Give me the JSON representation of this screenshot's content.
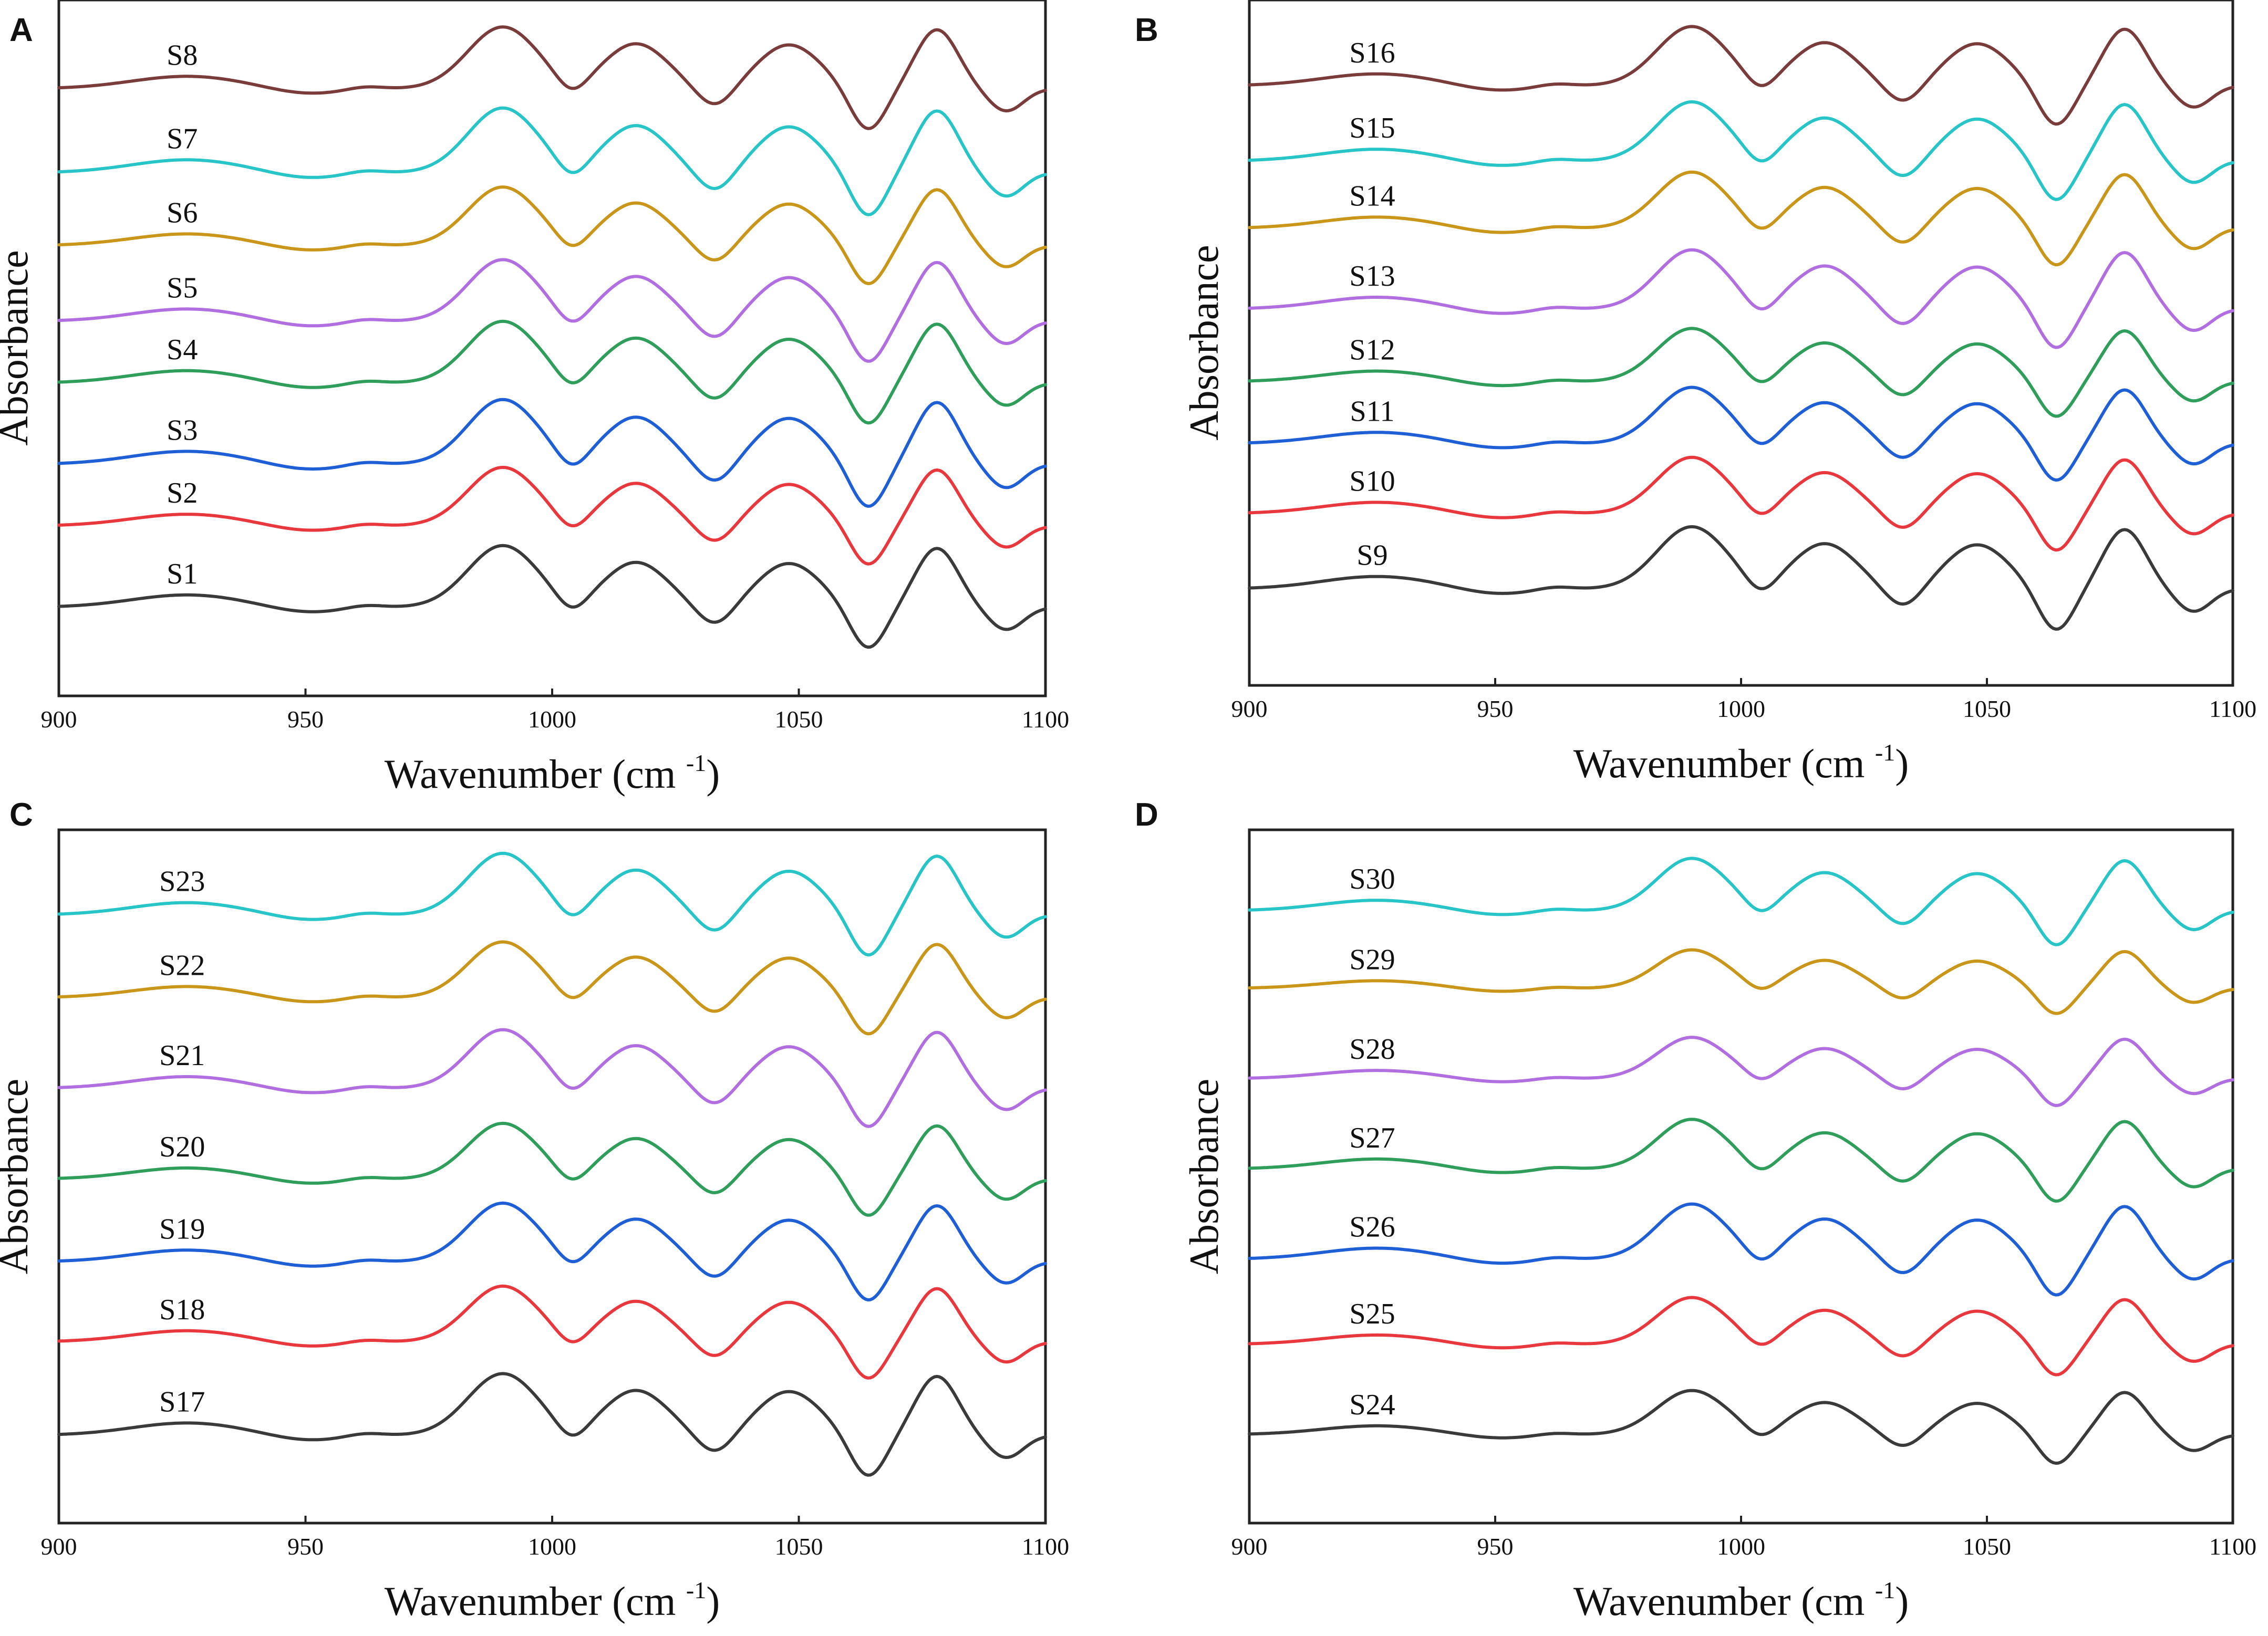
{
  "figure": {
    "x_axis_label": "Wavenumber (cm",
    "x_axis_label_sup": "-1",
    "x_axis_label_close": ")",
    "y_axis_label": "Absorbance"
  },
  "colors": {
    "black": "#3a3a3a",
    "red": "#e8383d",
    "blue": "#1f5fd6",
    "green": "#2e9e5a",
    "purple": "#b06ee0",
    "gold": "#c9961a",
    "cyan": "#27c4c8",
    "brown": "#7a3b3b"
  },
  "chart_data": [
    {
      "panel": "A",
      "type": "line",
      "title": "",
      "xlabel": "Wavenumber (cm-1)",
      "ylabel": "Absorbance",
      "xlim": [
        900,
        1100
      ],
      "x_ticks": [
        "900",
        "950",
        "1000",
        "1050",
        "1100"
      ],
      "y_ticks": [],
      "series": [
        {
          "name": "S1",
          "color": "black",
          "offset": 0.4,
          "amp": 1.0
        },
        {
          "name": "S2",
          "color": "red",
          "offset": 1.85,
          "amp": 0.95
        },
        {
          "name": "S3",
          "color": "blue",
          "offset": 2.95,
          "amp": 1.05
        },
        {
          "name": "S4",
          "color": "green",
          "offset": 4.4,
          "amp": 1.0
        },
        {
          "name": "S5",
          "color": "purple",
          "offset": 5.5,
          "amp": 1.0
        },
        {
          "name": "S6",
          "color": "gold",
          "offset": 6.85,
          "amp": 0.95
        },
        {
          "name": "S7",
          "color": "cyan",
          "offset": 8.15,
          "amp": 1.05
        },
        {
          "name": "S8",
          "color": "brown",
          "offset": 9.65,
          "amp": 1.0
        }
      ]
    },
    {
      "panel": "B",
      "type": "line",
      "title": "",
      "xlabel": "Wavenumber (cm-1)",
      "ylabel": "Absorbance",
      "xlim": [
        900,
        1100
      ],
      "x_ticks": [
        "900",
        "950",
        "1000",
        "1050",
        "1100"
      ],
      "y_ticks": [],
      "series": [
        {
          "name": "S9",
          "color": "black",
          "offset": 0.6,
          "amp": 1.05
        },
        {
          "name": "S10",
          "color": "red",
          "offset": 2.0,
          "amp": 0.95
        },
        {
          "name": "S11",
          "color": "blue",
          "offset": 3.3,
          "amp": 0.95
        },
        {
          "name": "S12",
          "color": "green",
          "offset": 4.45,
          "amp": 0.9
        },
        {
          "name": "S13",
          "color": "purple",
          "offset": 5.8,
          "amp": 1.0
        },
        {
          "name": "S14",
          "color": "gold",
          "offset": 7.3,
          "amp": 0.95
        },
        {
          "name": "S15",
          "color": "cyan",
          "offset": 8.55,
          "amp": 1.0
        },
        {
          "name": "S16",
          "color": "brown",
          "offset": 9.95,
          "amp": 1.0
        }
      ]
    },
    {
      "panel": "C",
      "type": "line",
      "title": "",
      "xlabel": "Wavenumber (cm-1)",
      "ylabel": "Absorbance",
      "xlim": [
        900,
        1100
      ],
      "x_ticks": [
        "900",
        "950",
        "1000",
        "1050",
        "1100"
      ],
      "y_ticks": [],
      "series": [
        {
          "name": "S17",
          "color": "black",
          "offset": 0.45,
          "amp": 1.05
        },
        {
          "name": "S18",
          "color": "red",
          "offset": 2.2,
          "amp": 0.95
        },
        {
          "name": "S19",
          "color": "blue",
          "offset": 3.7,
          "amp": 1.0
        },
        {
          "name": "S20",
          "color": "green",
          "offset": 5.25,
          "amp": 0.95
        },
        {
          "name": "S21",
          "color": "purple",
          "offset": 6.95,
          "amp": 1.0
        },
        {
          "name": "S22",
          "color": "gold",
          "offset": 8.65,
          "amp": 0.95
        },
        {
          "name": "S23",
          "color": "cyan",
          "offset": 10.2,
          "amp": 1.05
        }
      ]
    },
    {
      "panel": "D",
      "type": "line",
      "title": "",
      "xlabel": "Wavenumber (cm-1)",
      "ylabel": "Absorbance",
      "xlim": [
        900,
        1100
      ],
      "x_ticks": [
        "900",
        "950",
        "1000",
        "1050",
        "1100"
      ],
      "y_ticks": [],
      "series": [
        {
          "name": "S24",
          "color": "black",
          "offset": 0.55,
          "amp": 0.8
        },
        {
          "name": "S25",
          "color": "red",
          "offset": 2.35,
          "amp": 0.85
        },
        {
          "name": "S26",
          "color": "blue",
          "offset": 4.05,
          "amp": 1.0
        },
        {
          "name": "S27",
          "color": "green",
          "offset": 5.85,
          "amp": 0.9
        },
        {
          "name": "S28",
          "color": "purple",
          "offset": 7.65,
          "amp": 0.75
        },
        {
          "name": "S29",
          "color": "gold",
          "offset": 9.45,
          "amp": 0.7
        },
        {
          "name": "S30",
          "color": "cyan",
          "offset": 11.0,
          "amp": 0.95
        }
      ]
    }
  ]
}
